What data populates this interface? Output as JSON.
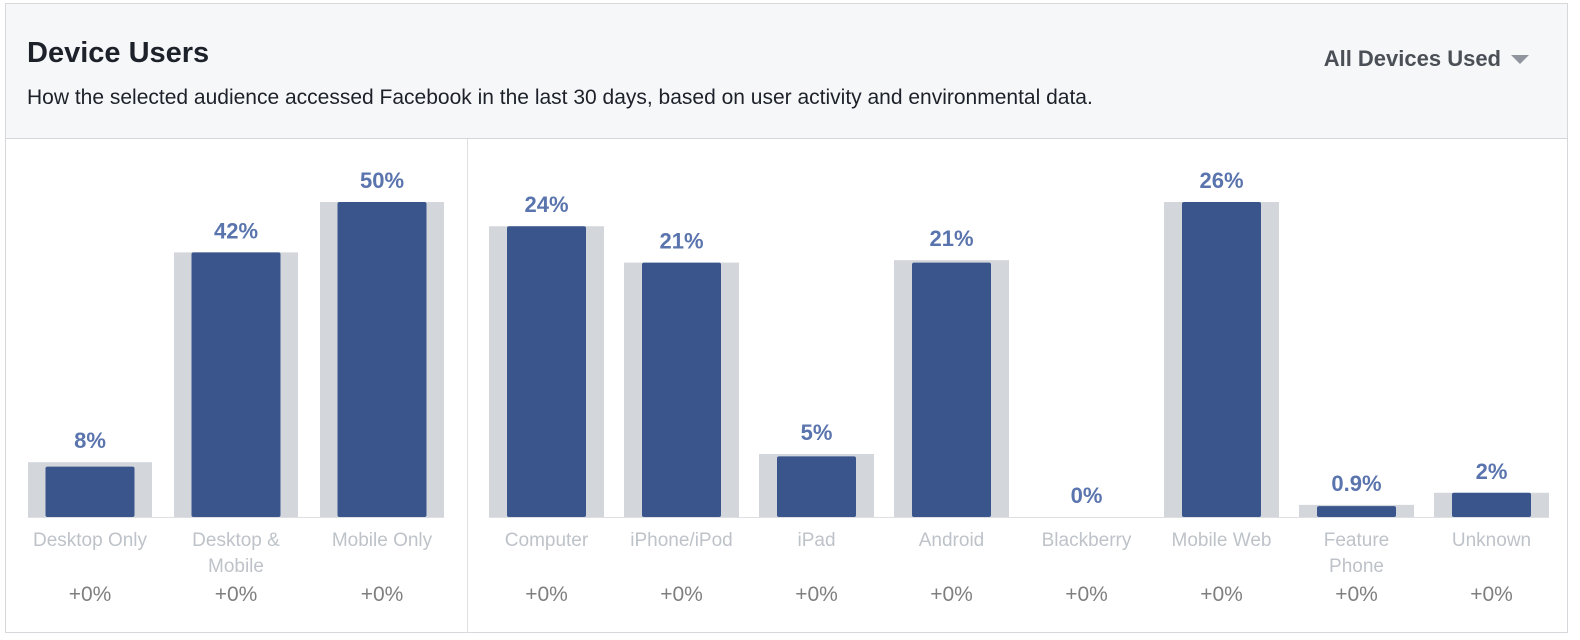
{
  "header": {
    "title": "Device Users",
    "subtitle": "How the selected audience accessed Facebook in the last 30 days, based on user activity and environmental data.",
    "dropdown_label": "All Devices Used"
  },
  "colors": {
    "bar": "#39558c",
    "bar_background": "#d3d6db",
    "value_label": "#5a74ad",
    "category_label": "#bec3c9",
    "delta_label": "#7f7f7f"
  },
  "chart_data": [
    {
      "type": "bar",
      "title": "",
      "xlabel": "",
      "ylabel": "",
      "ylim": [
        0,
        50
      ],
      "categories": [
        "Desktop Only",
        "Desktop & Mobile",
        "Mobile Only"
      ],
      "values": [
        8,
        42,
        50
      ],
      "background_values": [
        8.7,
        42,
        50
      ],
      "value_labels": [
        "8%",
        "42%",
        "50%"
      ],
      "deltas": [
        "+0%",
        "+0%",
        "+0%"
      ]
    },
    {
      "type": "bar",
      "title": "",
      "xlabel": "",
      "ylabel": "",
      "ylim": [
        0,
        26
      ],
      "categories": [
        "Computer",
        "iPhone/iPod",
        "iPad",
        "Android",
        "Blackberry",
        "Mobile Web",
        "Feature Phone",
        "Unknown"
      ],
      "values": [
        24,
        21,
        5,
        21,
        0,
        26,
        0.9,
        2
      ],
      "background_values": [
        24,
        21,
        5.2,
        21.2,
        0,
        26,
        1,
        2
      ],
      "value_labels": [
        "24%",
        "21%",
        "5%",
        "21%",
        "0%",
        "26%",
        "0.9%",
        "2%"
      ],
      "deltas": [
        "+0%",
        "+0%",
        "+0%",
        "+0%",
        "+0%",
        "+0%",
        "+0%",
        "+0%"
      ]
    }
  ]
}
